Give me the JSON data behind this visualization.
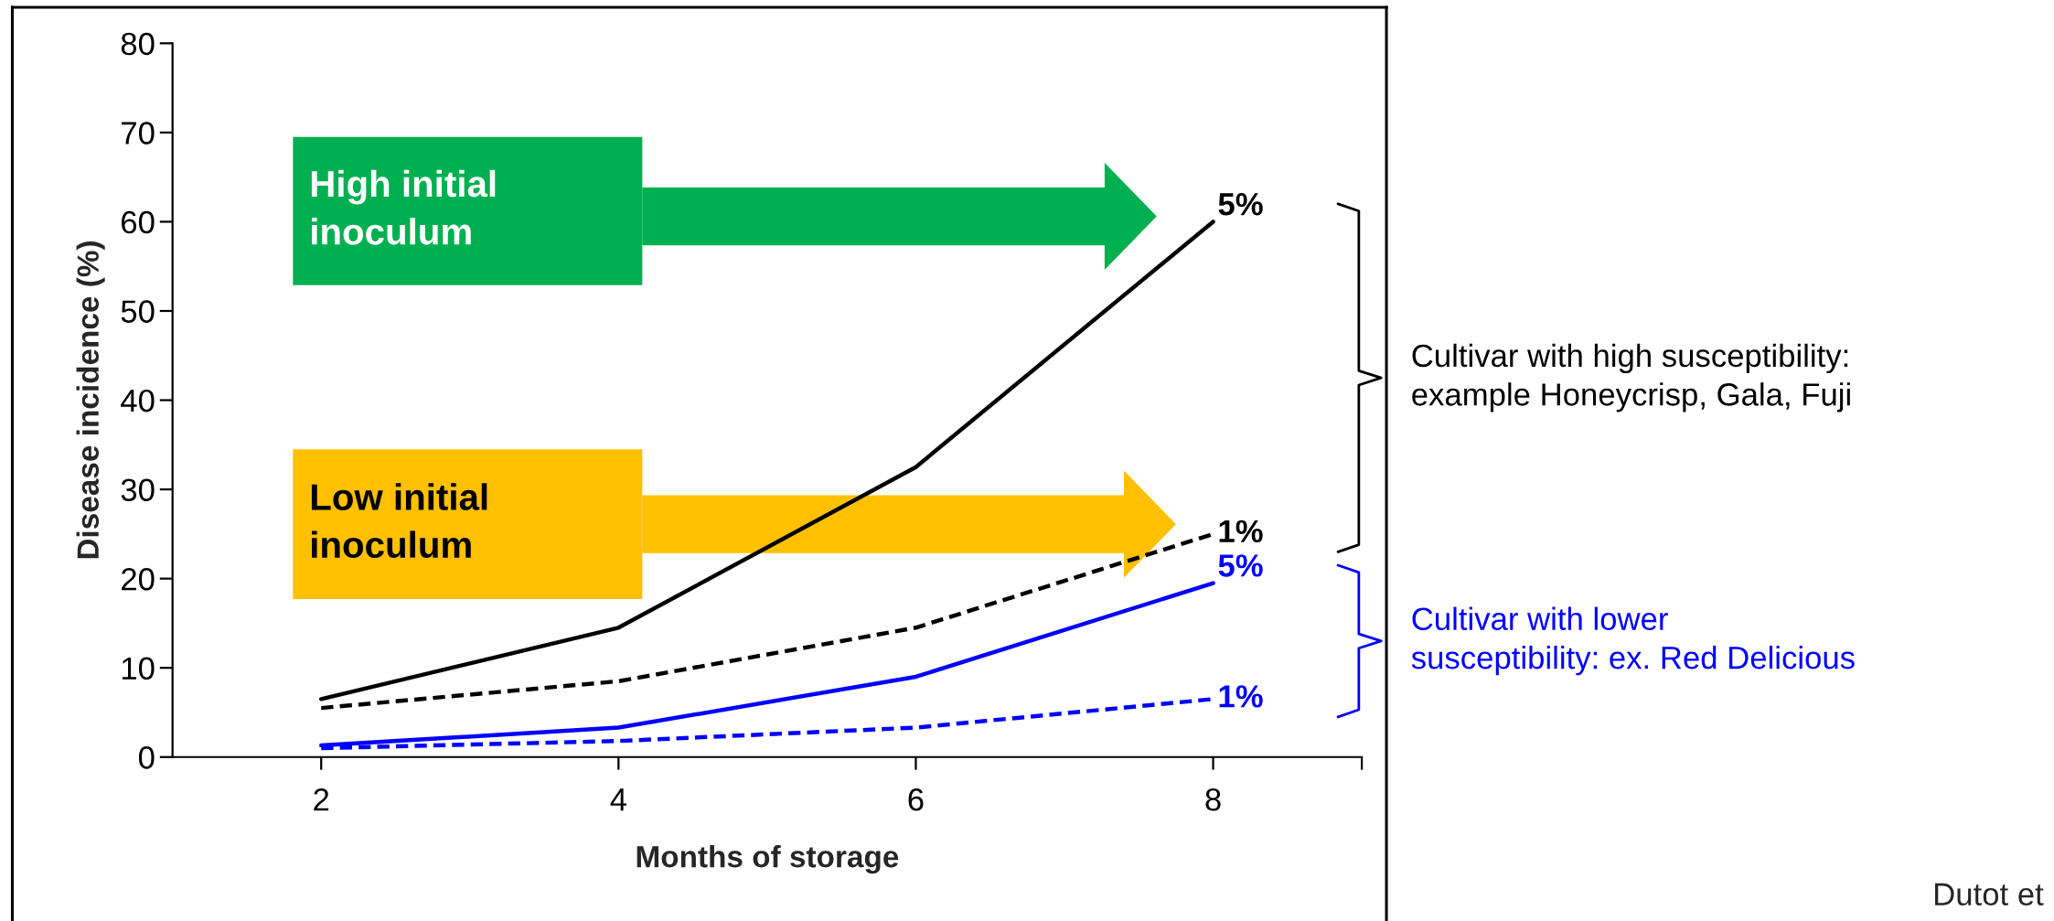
{
  "chart_data": {
    "type": "line",
    "xlabel": "Months of storage",
    "ylabel": "Disease incidence (%)",
    "x": [
      2,
      4,
      6,
      8
    ],
    "series": [
      {
        "name": "5%",
        "color": "#000000",
        "line_style": "solid",
        "values": [
          6.5,
          14.5,
          32.5,
          60
        ]
      },
      {
        "name": "1%",
        "color": "#000000",
        "line_style": "dashed",
        "values": [
          5.5,
          8.5,
          14.5,
          25
        ]
      },
      {
        "name": "5%",
        "color": "#0000ff",
        "line_style": "solid",
        "values": [
          1.3,
          3.3,
          9,
          19.5
        ]
      },
      {
        "name": "1%",
        "color": "#0000ff",
        "line_style": "dashed",
        "values": [
          1,
          1.8,
          3.3,
          6.5
        ]
      }
    ],
    "xlim": [
      1,
      9
    ],
    "xticks": [
      2,
      4,
      6,
      8,
      {
        "value": 9,
        "label": null
      }
    ],
    "ylim": [
      0,
      80
    ],
    "yticks": [
      0,
      10,
      20,
      30,
      40,
      50,
      60,
      70,
      80
    ],
    "grid": false,
    "legend": false,
    "marker": "none",
    "annotations": [
      "High initial\ninoculum",
      "Low initial\ninoculum",
      "Cultivar with high susceptibility:\nexample Honeycrisp, Gala, Fuji",
      "Cultivar with lower\nsusceptibility: ex. Red Delicious",
      "Dutot et"
    ]
  }
}
